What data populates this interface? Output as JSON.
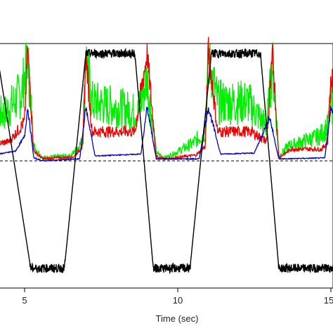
{
  "chart_data": {
    "type": "line",
    "title": "",
    "xlabel": "Time (sec)",
    "ylabel": "",
    "xlim": [
      3.8,
      15.5
    ],
    "ylim": [
      -1.3,
      1.3
    ],
    "x_ticks": [
      5,
      10,
      15
    ],
    "x_tick_labels": [
      "5",
      "10",
      "15"
    ],
    "grid": false,
    "legend": "none",
    "colors": {
      "position": "#000000",
      "green": "#00ee00",
      "red": "#ee0000",
      "blue": "#0000cc",
      "baseline": "#000000"
    },
    "position_trace": {
      "name": "",
      "points": [
        [
          3.8,
          1.1
        ],
        [
          4.1,
          1.1
        ],
        [
          5.2,
          -1.1
        ],
        [
          6.3,
          -1.1
        ],
        [
          7.0,
          1.1
        ],
        [
          8.6,
          1.1
        ],
        [
          9.2,
          -1.1
        ],
        [
          10.4,
          -1.1
        ],
        [
          11.1,
          1.1
        ],
        [
          12.7,
          1.1
        ],
        [
          13.3,
          -1.1
        ],
        [
          15.5,
          -1.1
        ]
      ]
    },
    "peak_times": [
      5.1,
      7.0,
      9.0,
      11.0,
      13.0,
      15.0
    ],
    "series": [
      {
        "name": "",
        "color": "#00ee00",
        "points": [
          [
            3.8,
            0.45
          ],
          [
            4.4,
            0.5
          ],
          [
            4.9,
            0.7
          ],
          [
            5.1,
            1.05
          ],
          [
            5.3,
            0.15
          ],
          [
            5.6,
            0.03
          ],
          [
            6.5,
            0.05
          ],
          [
            6.9,
            0.2
          ],
          [
            7.0,
            1.1
          ],
          [
            7.2,
            0.6
          ],
          [
            8.0,
            0.55
          ],
          [
            8.7,
            0.5
          ],
          [
            9.0,
            0.85
          ],
          [
            9.3,
            0.08
          ],
          [
            9.6,
            0.03
          ],
          [
            10.5,
            0.18
          ],
          [
            10.9,
            0.3
          ],
          [
            11.0,
            1.05
          ],
          [
            11.3,
            0.6
          ],
          [
            12.3,
            0.6
          ],
          [
            12.9,
            0.35
          ],
          [
            13.1,
            1.0
          ],
          [
            13.3,
            0.05
          ],
          [
            13.6,
            0.15
          ],
          [
            14.6,
            0.25
          ],
          [
            14.9,
            0.35
          ],
          [
            15.0,
            0.6
          ],
          [
            15.5,
            0.55
          ]
        ]
      },
      {
        "name": "",
        "color": "#ee0000",
        "points": [
          [
            3.8,
            0.15
          ],
          [
            4.5,
            0.2
          ],
          [
            5.0,
            0.4
          ],
          [
            5.1,
            1.15
          ],
          [
            5.3,
            0.1
          ],
          [
            5.6,
            0.02
          ],
          [
            6.6,
            0.04
          ],
          [
            6.9,
            0.15
          ],
          [
            7.0,
            1.1
          ],
          [
            7.2,
            0.3
          ],
          [
            8.6,
            0.3
          ],
          [
            9.0,
            1.1
          ],
          [
            9.3,
            0.04
          ],
          [
            9.6,
            0.02
          ],
          [
            10.6,
            0.06
          ],
          [
            10.9,
            0.15
          ],
          [
            11.0,
            1.15
          ],
          [
            11.3,
            0.3
          ],
          [
            12.4,
            0.3
          ],
          [
            12.9,
            0.2
          ],
          [
            13.1,
            1.1
          ],
          [
            13.3,
            0.03
          ],
          [
            13.7,
            0.12
          ],
          [
            14.7,
            0.12
          ],
          [
            14.9,
            0.2
          ],
          [
            15.0,
            0.85
          ],
          [
            15.5,
            0.35
          ]
        ]
      },
      {
        "name": "",
        "color": "#0000cc",
        "points": [
          [
            3.8,
            0.05
          ],
          [
            4.7,
            0.1
          ],
          [
            5.0,
            0.25
          ],
          [
            5.1,
            0.55
          ],
          [
            5.3,
            0.03
          ],
          [
            5.6,
            0.0
          ],
          [
            6.8,
            0.02
          ],
          [
            7.0,
            0.55
          ],
          [
            7.3,
            0.05
          ],
          [
            8.8,
            0.07
          ],
          [
            9.0,
            0.55
          ],
          [
            9.3,
            0.02
          ],
          [
            10.7,
            0.02
          ],
          [
            11.0,
            0.55
          ],
          [
            11.4,
            0.07
          ],
          [
            12.5,
            0.08
          ],
          [
            13.0,
            0.45
          ],
          [
            13.3,
            0.02
          ],
          [
            14.8,
            0.03
          ],
          [
            15.0,
            0.55
          ],
          [
            15.5,
            0.2
          ]
        ]
      }
    ]
  }
}
